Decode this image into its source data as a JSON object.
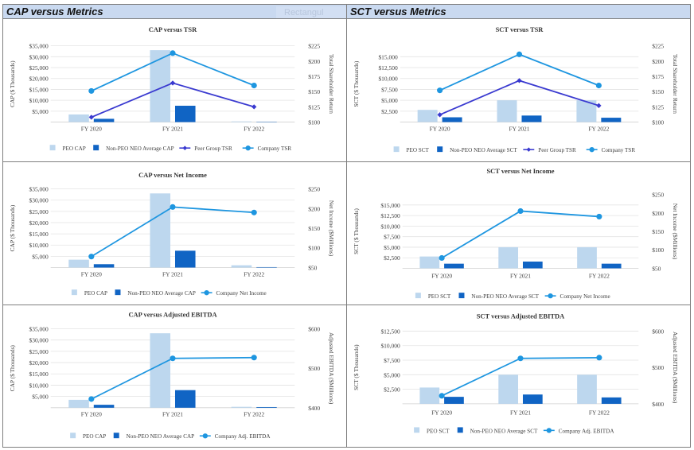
{
  "headers": {
    "left": "CAP versus Metrics",
    "right": "SCT versus Metrics",
    "ghost": "Rectangul"
  },
  "colors": {
    "peo": "#bdd7ee",
    "neo": "#1064c4",
    "peer": "#3a3ad0",
    "company": "#1e96e0"
  },
  "chart_data": [
    {
      "type": "bar+line",
      "title": "CAP versus TSR",
      "categories": [
        "FY 2020",
        "FY 2021",
        "FY 2022"
      ],
      "ylabel": "CAP ($ Thousands)",
      "y2label": "Total Shareholder Return",
      "ylim": [
        0,
        35000
      ],
      "yticks": [
        "$5,000",
        "$10,000",
        "$15,000",
        "$20,000",
        "$25,000",
        "$30,000",
        "$35,000"
      ],
      "y2lim": [
        100,
        225
      ],
      "y2ticks": [
        "$100",
        "$125",
        "$150",
        "$175",
        "$200",
        "$225"
      ],
      "bars": [
        {
          "name": "PEO CAP",
          "values": [
            3500,
            33000,
            300
          ]
        },
        {
          "name": "Non-PEO NEO Average CAP",
          "values": [
            1500,
            7500,
            150
          ]
        }
      ],
      "lines": [
        {
          "name": "Peer Group TSR",
          "values": [
            108,
            164,
            125
          ],
          "style": "peer"
        },
        {
          "name": "Company TSR",
          "values": [
            151,
            213,
            160
          ],
          "style": "company"
        }
      ]
    },
    {
      "type": "bar+line",
      "title": "SCT versus TSR",
      "categories": [
        "FY 2020",
        "FY 2021",
        "FY 2022"
      ],
      "ylabel": "SCT ($ Thousands)",
      "y2label": "Total Shareholder Return",
      "ylim": [
        0,
        17500
      ],
      "yticks": [
        "$2,500",
        "$5,000",
        "$7,500",
        "$10,000",
        "$12,500",
        "$15,000"
      ],
      "y2lim": [
        100,
        225
      ],
      "y2ticks": [
        "$100",
        "$125",
        "$150",
        "$175",
        "$200",
        "$225"
      ],
      "bars": [
        {
          "name": "PEO SCT",
          "values": [
            2800,
            5000,
            5000
          ]
        },
        {
          "name": "Non-PEO NEO Average SCT",
          "values": [
            1100,
            1500,
            1000
          ]
        }
      ],
      "lines": [
        {
          "name": "Peer Group TSR",
          "values": [
            112,
            168,
            127
          ],
          "style": "peer"
        },
        {
          "name": "Company TSR",
          "values": [
            152,
            211,
            160
          ],
          "style": "company"
        }
      ]
    },
    {
      "type": "bar+line",
      "title": "CAP versus Net Income",
      "categories": [
        "FY 2020",
        "FY 2021",
        "FY 2022"
      ],
      "ylabel": "CAP ($ Thousands)",
      "y2label": "Net Income ($Millions)",
      "ylim": [
        0,
        35000
      ],
      "yticks": [
        "$5,000",
        "$10,000",
        "$15,000",
        "$20,000",
        "$25,000",
        "$30,000",
        "$35,000"
      ],
      "y2lim": [
        50,
        250
      ],
      "y2ticks": [
        "$50",
        "$100",
        "$150",
        "$200",
        "$250"
      ],
      "bars": [
        {
          "name": "PEO CAP",
          "values": [
            3500,
            33000,
            1000
          ]
        },
        {
          "name": "Non-PEO NEO Average CAP",
          "values": [
            1500,
            7500,
            200
          ]
        }
      ],
      "lines": [
        {
          "name": "Company Net Income",
          "values": [
            78,
            204,
            190
          ],
          "style": "company"
        }
      ]
    },
    {
      "type": "bar+line",
      "title": "SCT versus Net Income",
      "categories": [
        "FY 2020",
        "FY 2021",
        "FY 2022"
      ],
      "ylabel": "SCT ($ Thousands)",
      "y2label": "Net Income ($Millions)",
      "ylim": [
        0,
        17500
      ],
      "yticks": [
        "$2,500",
        "$5,000",
        "$7,500",
        "$10,000",
        "$12,500",
        "$15,000"
      ],
      "y2lim": [
        50,
        250
      ],
      "y2ticks": [
        "$50",
        "$100",
        "$150",
        "$200",
        "$250"
      ],
      "bars": [
        {
          "name": "PEO SCT",
          "values": [
            2800,
            5000,
            5000
          ]
        },
        {
          "name": "Non-PEO NEO Average SCT",
          "values": [
            1100,
            1600,
            1100
          ]
        }
      ],
      "lines": [
        {
          "name": "Company Net Income",
          "values": [
            78,
            205,
            190
          ],
          "style": "company"
        }
      ]
    },
    {
      "type": "bar+line",
      "title": "CAP versus Adjusted EBITDA",
      "categories": [
        "FY 2020",
        "FY 2021",
        "FY 2022"
      ],
      "ylabel": "CAP ($ Thousands)",
      "y2label": "Adjusted EBITDA ($Millions)",
      "ylim": [
        0,
        35000
      ],
      "yticks": [
        "$5,000",
        "$10,000",
        "$15,000",
        "$20,000",
        "$25,000",
        "$30,000",
        "$35,000"
      ],
      "y2lim": [
        400,
        600
      ],
      "y2ticks": [
        "$400",
        "$500",
        "$600"
      ],
      "bars": [
        {
          "name": "PEO CAP",
          "values": [
            3500,
            33000,
            400
          ]
        },
        {
          "name": "Non-PEO NEO Average CAP",
          "values": [
            1300,
            7800,
            300
          ]
        }
      ],
      "lines": [
        {
          "name": "Company Adj. EBITDA",
          "values": [
            422,
            525,
            527
          ],
          "style": "company"
        }
      ]
    },
    {
      "type": "bar+line",
      "title": "SCT versus Adjusted EBITDA",
      "categories": [
        "FY 2020",
        "FY 2021",
        "FY 2022"
      ],
      "ylabel": "SCT ($ Thousands)",
      "y2label": "Adjusted EBITDA ($Millions)",
      "ylim": [
        0,
        12500
      ],
      "yticks": [
        "$2,500",
        "$5,000",
        "$7,500",
        "$10,000",
        "$12,500"
      ],
      "y2lim": [
        400,
        600
      ],
      "y2ticks": [
        "$400",
        "$500",
        "$600"
      ],
      "bars": [
        {
          "name": "PEO SCT",
          "values": [
            2800,
            5000,
            5000
          ]
        },
        {
          "name": "Non-PEO NEO Average SCT",
          "values": [
            1200,
            1600,
            1100
          ]
        }
      ],
      "lines": [
        {
          "name": "Company Adj. EBITDA",
          "values": [
            422,
            525,
            527
          ],
          "style": "company"
        }
      ]
    }
  ]
}
